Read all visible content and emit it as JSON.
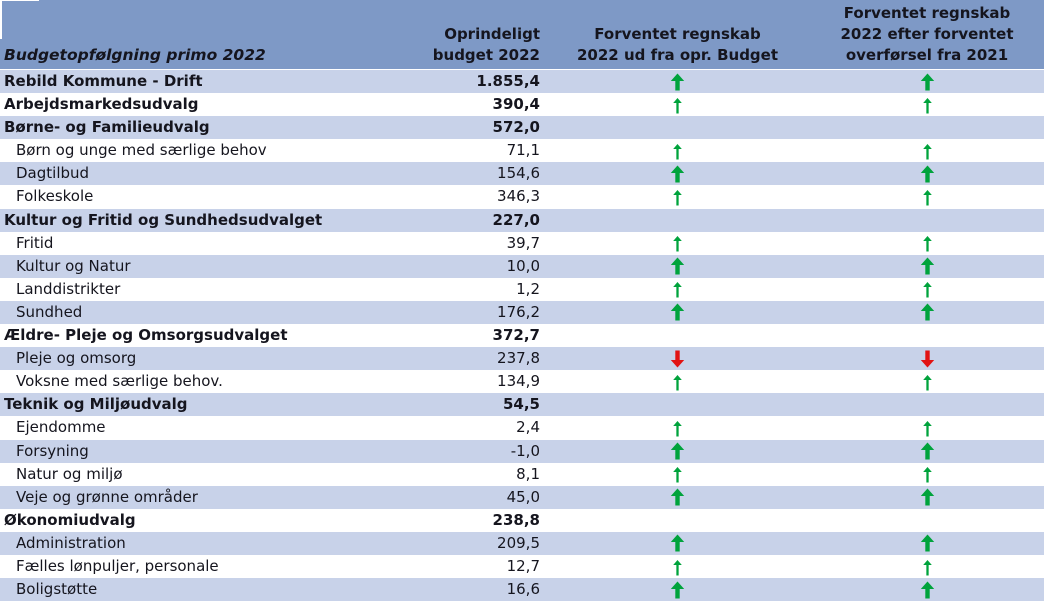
{
  "title": "Budgetopfølgning primo 2022",
  "header": {
    "col1_label": "Budgetopfølgning primo 2022",
    "col2_lines": [
      "Oprindeligt",
      "budget 2022"
    ],
    "col3_lines": [
      "Forventet regnskab",
      "2022 ud fra opr. Budget"
    ],
    "col4_lines": [
      "Forventet regnskab",
      "2022 efter forventet",
      "overførsel fra 2021"
    ]
  },
  "colors": {
    "header_bg": "#7e99c6",
    "row_shaded_bg": "#c8d2e9",
    "row_plain_bg": "#ffffff",
    "text": "#15151e",
    "arrow_up_green": "#00a33c",
    "arrow_down_red": "#e21313"
  },
  "icons": {
    "up": "up-arrow-icon",
    "down": "down-arrow-icon"
  },
  "rows": [
    {
      "label": "Rebild Kommune - Drift",
      "value": "1.855,4",
      "bold": true,
      "indent": false,
      "shaded": true,
      "arrow_opr": "up-thick",
      "arrow_overf": "up-thick"
    },
    {
      "label": "Arbejdsmarkedsudvalg",
      "value": "390,4",
      "bold": true,
      "indent": false,
      "shaded": false,
      "arrow_opr": "up-thin",
      "arrow_overf": "up-thin"
    },
    {
      "label": "Børne- og Familieudvalg",
      "value": "572,0",
      "bold": true,
      "indent": false,
      "shaded": true,
      "arrow_opr": null,
      "arrow_overf": null
    },
    {
      "label": "Børn og unge med særlige behov",
      "value": "71,1",
      "bold": false,
      "indent": true,
      "shaded": false,
      "arrow_opr": "up-thin",
      "arrow_overf": "up-thin"
    },
    {
      "label": "Dagtilbud",
      "value": "154,6",
      "bold": false,
      "indent": true,
      "shaded": true,
      "arrow_opr": "up-thick",
      "arrow_overf": "up-thick"
    },
    {
      "label": "Folkeskole",
      "value": "346,3",
      "bold": false,
      "indent": true,
      "shaded": false,
      "arrow_opr": "up-thin",
      "arrow_overf": "up-thin"
    },
    {
      "label": "Kultur og Fritid og Sundhedsudvalget",
      "value": "227,0",
      "bold": true,
      "indent": false,
      "shaded": true,
      "arrow_opr": null,
      "arrow_overf": null
    },
    {
      "label": "Fritid",
      "value": "39,7",
      "bold": false,
      "indent": true,
      "shaded": false,
      "arrow_opr": "up-thin",
      "arrow_overf": "up-thin"
    },
    {
      "label": "Kultur og Natur",
      "value": "10,0",
      "bold": false,
      "indent": true,
      "shaded": true,
      "arrow_opr": "up-thick",
      "arrow_overf": "up-thick"
    },
    {
      "label": "Landdistrikter",
      "value": "1,2",
      "bold": false,
      "indent": true,
      "shaded": false,
      "arrow_opr": "up-thin",
      "arrow_overf": "up-thin"
    },
    {
      "label": "Sundhed",
      "value": "176,2",
      "bold": false,
      "indent": true,
      "shaded": true,
      "arrow_opr": "up-thick",
      "arrow_overf": "up-thick"
    },
    {
      "label": "Ældre- Pleje og Omsorgsudvalget",
      "value": "372,7",
      "bold": true,
      "indent": false,
      "shaded": false,
      "arrow_opr": null,
      "arrow_overf": null
    },
    {
      "label": "Pleje og omsorg",
      "value": "237,8",
      "bold": false,
      "indent": true,
      "shaded": true,
      "arrow_opr": "down-thick",
      "arrow_overf": "down-thick"
    },
    {
      "label": "Voksne med særlige behov.",
      "value": "134,9",
      "bold": false,
      "indent": true,
      "shaded": false,
      "arrow_opr": "up-thin",
      "arrow_overf": "up-thin"
    },
    {
      "label": "Teknik og Miljøudvalg",
      "value": "54,5",
      "bold": true,
      "indent": false,
      "shaded": true,
      "arrow_opr": null,
      "arrow_overf": null
    },
    {
      "label": "Ejendomme",
      "value": "2,4",
      "bold": false,
      "indent": true,
      "shaded": false,
      "arrow_opr": "up-thin",
      "arrow_overf": "up-thin"
    },
    {
      "label": "Forsyning",
      "value": "-1,0",
      "bold": false,
      "indent": true,
      "shaded": true,
      "arrow_opr": "up-thick",
      "arrow_overf": "up-thick"
    },
    {
      "label": "Natur og miljø",
      "value": "8,1",
      "bold": false,
      "indent": true,
      "shaded": false,
      "arrow_opr": "up-thin",
      "arrow_overf": "up-thin"
    },
    {
      "label": "Veje og grønne områder",
      "value": "45,0",
      "bold": false,
      "indent": true,
      "shaded": true,
      "arrow_opr": "up-thick",
      "arrow_overf": "up-thick"
    },
    {
      "label": "Økonomiudvalg",
      "value": "238,8",
      "bold": true,
      "indent": false,
      "shaded": false,
      "arrow_opr": null,
      "arrow_overf": null
    },
    {
      "label": "Administration",
      "value": "209,5",
      "bold": false,
      "indent": true,
      "shaded": true,
      "arrow_opr": "up-thick",
      "arrow_overf": "up-thick"
    },
    {
      "label": "Fælles lønpuljer, personale",
      "value": "12,7",
      "bold": false,
      "indent": true,
      "shaded": false,
      "arrow_opr": "up-thin",
      "arrow_overf": "up-thin"
    },
    {
      "label": "Boligstøtte",
      "value": "16,6",
      "bold": false,
      "indent": true,
      "shaded": true,
      "arrow_opr": "up-thick",
      "arrow_overf": "up-thick"
    }
  ]
}
